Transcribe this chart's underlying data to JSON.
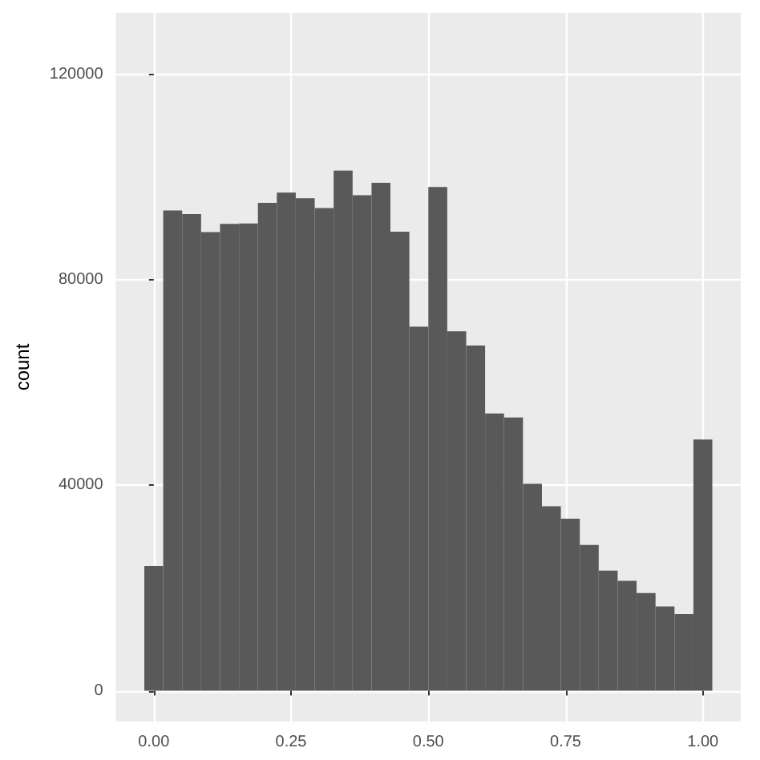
{
  "chart_data": {
    "type": "histogram",
    "ylabel": "count",
    "color": "#595959",
    "bins": [
      -0.0172,
      0.0172,
      0.0517,
      0.0862,
      0.1207,
      0.1552,
      0.1897,
      0.2241,
      0.2586,
      0.2931,
      0.3276,
      0.3621,
      0.3966,
      0.431,
      0.4655,
      0.5,
      0.5345,
      0.569,
      0.6034,
      0.6379,
      0.6724,
      0.7069,
      0.7414,
      0.7759,
      0.8103,
      0.8448,
      0.8793,
      0.9138,
      0.9483,
      0.9828,
      1.0172
    ],
    "values": [
      24300,
      93500,
      92800,
      89300,
      90900,
      91000,
      95000,
      97000,
      95900,
      94000,
      101300,
      96500,
      98900,
      89400,
      70900,
      98100,
      70000,
      67200,
      54000,
      53200,
      40300,
      35900,
      33500,
      28400,
      23400,
      21400,
      19000,
      16400,
      14900,
      48900
    ],
    "xlim": [
      -0.069,
      1.069
    ],
    "ylim": [
      -6000,
      132000
    ],
    "xticks": [
      {
        "value": 0,
        "label": "0.00"
      },
      {
        "value": 0.25,
        "label": "0.25"
      },
      {
        "value": 0.5,
        "label": "0.50"
      },
      {
        "value": 0.75,
        "label": "0.75"
      },
      {
        "value": 1,
        "label": "1.00"
      }
    ],
    "yticks": [
      0,
      40000,
      80000,
      120000
    ],
    "grid": true
  }
}
